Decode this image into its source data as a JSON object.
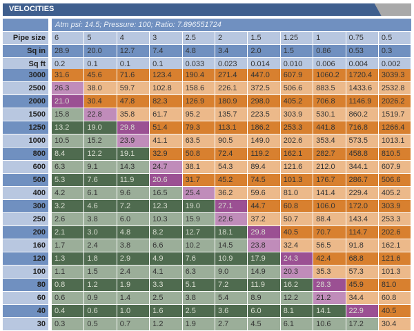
{
  "title": "VELOCITIES",
  "subtitle": "Atm psi: 14.5; Pressure: 100; Ratio: 7.896551724",
  "colors": {
    "title_bar": "#3f5f8e",
    "label_dark": "#7090c0",
    "label_light": "#b8c7e0",
    "green_dark": "#4f6b4f",
    "green_light": "#9bae99",
    "purple_dark": "#9b5093",
    "purple_light": "#c08cba",
    "orange_dark": "#d8802f",
    "orange_light": "#ecb98a"
  },
  "header_rows": [
    {
      "label": "Pipe size",
      "values": [
        "6",
        "5",
        "4",
        "3",
        "2.5",
        "2",
        "1.5",
        "1.25",
        "1",
        "0.75",
        "0.5"
      ]
    },
    {
      "label": "Sq in",
      "values": [
        "28.9",
        "20.0",
        "12.7",
        "7.4",
        "4.8",
        "3.4",
        "2.0",
        "1.5",
        "0.86",
        "0.53",
        "0.3"
      ]
    },
    {
      "label": "Sq ft",
      "values": [
        "0.2",
        "0.1",
        "0.1",
        "0.1",
        "0.033",
        "0.023",
        "0.014",
        "0.010",
        "0.006",
        "0.004",
        "0.002"
      ]
    }
  ],
  "rows": [
    {
      "label": "3000",
      "values": [
        "31.6",
        "45.6",
        "71.6",
        "123.4",
        "190.4",
        "271.4",
        "447.0",
        "607.9",
        "1060.2",
        "1720.4",
        "3039.3"
      ]
    },
    {
      "label": "2500",
      "values": [
        "26.3",
        "38.0",
        "59.7",
        "102.8",
        "158.6",
        "226.1",
        "372.5",
        "506.6",
        "883.5",
        "1433.6",
        "2532.8"
      ]
    },
    {
      "label": "2000",
      "values": [
        "21.0",
        "30.4",
        "47.8",
        "82.3",
        "126.9",
        "180.9",
        "298.0",
        "405.2",
        "706.8",
        "1146.9",
        "2026.2"
      ]
    },
    {
      "label": "1500",
      "values": [
        "15.8",
        "22.8",
        "35.8",
        "61.7",
        "95.2",
        "135.7",
        "223.5",
        "303.9",
        "530.1",
        "860.2",
        "1519.7"
      ]
    },
    {
      "label": "1250",
      "values": [
        "13.2",
        "19.0",
        "29.8",
        "51.4",
        "79.3",
        "113.1",
        "186.2",
        "253.3",
        "441.8",
        "716.8",
        "1266.4"
      ]
    },
    {
      "label": "1000",
      "values": [
        "10.5",
        "15.2",
        "23.9",
        "41.1",
        "63.5",
        "90.5",
        "149.0",
        "202.6",
        "353.4",
        "573.5",
        "1013.1"
      ]
    },
    {
      "label": "800",
      "values": [
        "8.4",
        "12.2",
        "19.1",
        "32.9",
        "50.8",
        "72.4",
        "119.2",
        "162.1",
        "282.7",
        "458.8",
        "810.5"
      ]
    },
    {
      "label": "600",
      "values": [
        "6.3",
        "9.1",
        "14.3",
        "24.7",
        "38.1",
        "54.3",
        "89.4",
        "121.6",
        "212.0",
        "344.1",
        "607.9"
      ]
    },
    {
      "label": "500",
      "values": [
        "5.3",
        "7.6",
        "11.9",
        "20.6",
        "31.7",
        "45.2",
        "74.5",
        "101.3",
        "176.7",
        "286.7",
        "506.6"
      ]
    },
    {
      "label": "400",
      "values": [
        "4.2",
        "6.1",
        "9.6",
        "16.5",
        "25.4",
        "36.2",
        "59.6",
        "81.0",
        "141.4",
        "229.4",
        "405.2"
      ]
    },
    {
      "label": "300",
      "values": [
        "3.2",
        "4.6",
        "7.2",
        "12.3",
        "19.0",
        "27.1",
        "44.7",
        "60.8",
        "106.0",
        "172.0",
        "303.9"
      ]
    },
    {
      "label": "250",
      "values": [
        "2.6",
        "3.8",
        "6.0",
        "10.3",
        "15.9",
        "22.6",
        "37.2",
        "50.7",
        "88.4",
        "143.4",
        "253.3"
      ]
    },
    {
      "label": "200",
      "values": [
        "2.1",
        "3.0",
        "4.8",
        "8.2",
        "12.7",
        "18.1",
        "29.8",
        "40.5",
        "70.7",
        "114.7",
        "202.6"
      ]
    },
    {
      "label": "160",
      "values": [
        "1.7",
        "2.4",
        "3.8",
        "6.6",
        "10.2",
        "14.5",
        "23.8",
        "32.4",
        "56.5",
        "91.8",
        "162.1"
      ]
    },
    {
      "label": "120",
      "values": [
        "1.3",
        "1.8",
        "2.9",
        "4.9",
        "7.6",
        "10.9",
        "17.9",
        "24.3",
        "42.4",
        "68.8",
        "121.6"
      ]
    },
    {
      "label": "100",
      "values": [
        "1.1",
        "1.5",
        "2.4",
        "4.1",
        "6.3",
        "9.0",
        "14.9",
        "20.3",
        "35.3",
        "57.3",
        "101.3"
      ]
    },
    {
      "label": "80",
      "values": [
        "0.8",
        "1.2",
        "1.9",
        "3.3",
        "5.1",
        "7.2",
        "11.9",
        "16.2",
        "28.3",
        "45.9",
        "81.0"
      ]
    },
    {
      "label": "60",
      "values": [
        "0.6",
        "0.9",
        "1.4",
        "2.5",
        "3.8",
        "5.4",
        "8.9",
        "12.2",
        "21.2",
        "34.4",
        "60.8"
      ]
    },
    {
      "label": "40",
      "values": [
        "0.4",
        "0.6",
        "1.0",
        "1.6",
        "2.5",
        "3.6",
        "6.0",
        "8.1",
        "14.1",
        "22.9",
        "40.5"
      ]
    },
    {
      "label": "30",
      "values": [
        "0.3",
        "0.5",
        "0.7",
        "1.2",
        "1.9",
        "2.7",
        "4.5",
        "6.1",
        "10.6",
        "17.2",
        "30.4"
      ]
    }
  ]
}
